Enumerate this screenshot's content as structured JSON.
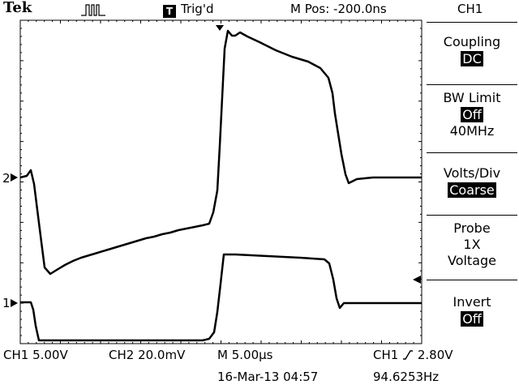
{
  "header": {
    "brand": "Tek",
    "trigger_box": "T",
    "trigger_status": "Trig'd",
    "m_pos": "M Pos: -200.0ns",
    "channel": "CH1"
  },
  "menu": {
    "items": [
      {
        "title": "Coupling",
        "value": "DC"
      },
      {
        "title": "BW Limit",
        "value": "Off",
        "extra": "40MHz"
      },
      {
        "title": "Volts/Div",
        "value": "Coarse"
      },
      {
        "title": "Probe",
        "lines": [
          "1X",
          "Voltage"
        ]
      },
      {
        "title": "Invert",
        "value": "Off"
      }
    ]
  },
  "markers": {
    "ch1": "1",
    "ch2": "2"
  },
  "footer": {
    "ch1_scale": "CH1  5.00V",
    "ch2_scale": "CH2  20.0mV",
    "timebase": "M 5.00µs",
    "trigger_source": "CH1",
    "trigger_level": "2.80V",
    "date_time": "16-Mar-13 04:57",
    "frequency": "94.6253Hz"
  },
  "colors": {
    "background": "#ffffff",
    "trace": "#000000",
    "grid": "#000000"
  }
}
